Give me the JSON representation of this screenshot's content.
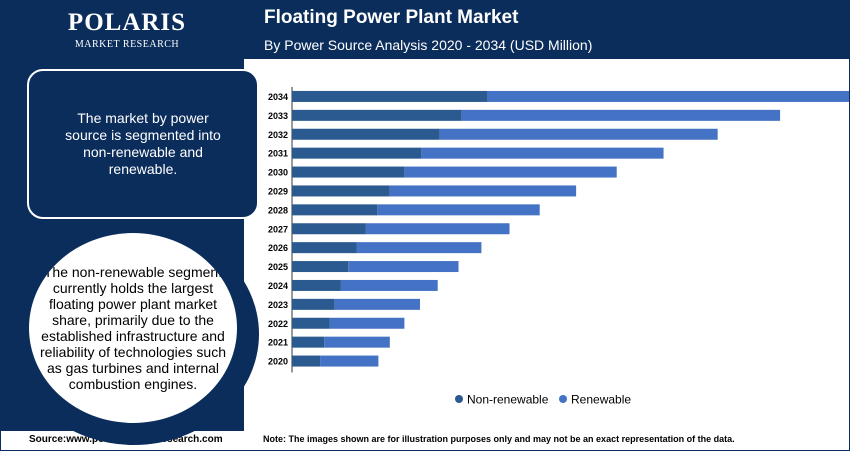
{
  "logo": {
    "name": "POLARIS",
    "tagline": "MARKET RESEARCH"
  },
  "info_box": {
    "text": "The market by power source is segmented into non-renewable and renewable."
  },
  "highlight": {
    "text": "The non-renewable segment currently holds the largest floating power plant market share, primarily due to the established infrastructure and reliability of technologies such as gas turbines and internal combustion engines."
  },
  "footer": {
    "source": "Source:www.polarismarketresearch.com",
    "note": "Note: The images shown are for illustration purposes only and may not be an exact representation of the data."
  },
  "colors": {
    "navy": "#0b2d5c",
    "non_renewable": "#2a5a8f",
    "renewable": "#4472c4"
  },
  "chart_data": {
    "type": "bar",
    "orientation": "horizontal",
    "stacked": true,
    "title": "Floating Power Plant Market",
    "subtitle": "By Power Source Analysis 2020 - 2034 (USD Million)",
    "categories": [
      "2034",
      "2033",
      "2032",
      "2031",
      "2030",
      "2029",
      "2028",
      "2027",
      "2026",
      "2025",
      "2024",
      "2023",
      "2022",
      "2021",
      "2020"
    ],
    "series": [
      {
        "name": "Non-renewable",
        "color": "#2a5a8f",
        "values": [
          188,
          163,
          142,
          124,
          108,
          94,
          82,
          71,
          62,
          54,
          47,
          41,
          36,
          31,
          27
        ]
      },
      {
        "name": "Renewable",
        "color": "#4472c4",
        "values": [
          349,
          306,
          267,
          233,
          204,
          179,
          156,
          138,
          120,
          106,
          93,
          82,
          72,
          63,
          56
        ]
      }
    ],
    "xlim": [
      0,
      540
    ],
    "axis_values_shown": false,
    "grid": false,
    "legend_position": "bottom"
  }
}
